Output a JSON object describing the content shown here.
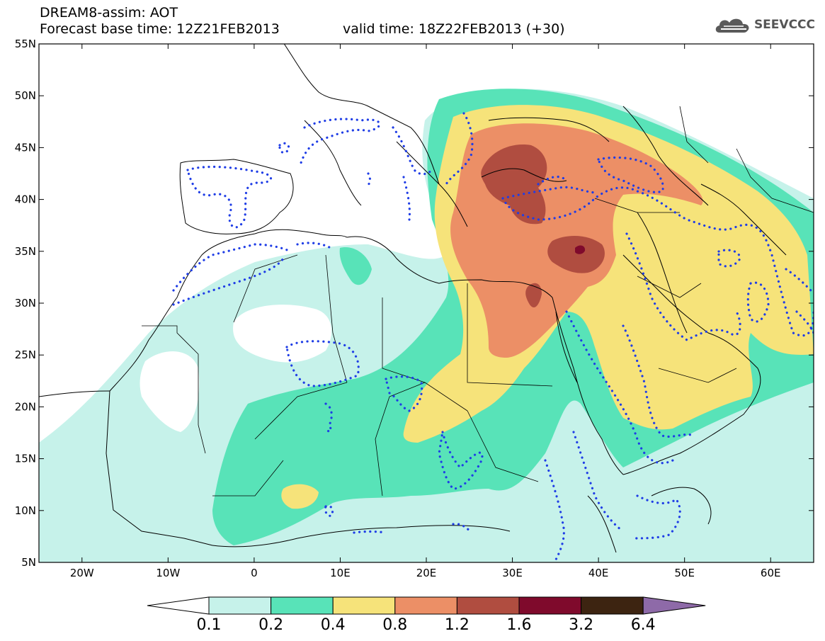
{
  "header": {
    "title": "DREAM8-assim: AOT",
    "base_time": "Forecast base time: 12Z21FEB2013",
    "valid_time": "valid time: 18Z22FEB2013 (+30)"
  },
  "logo": {
    "text": "SEEVCCC",
    "icon": "cloud-logo-icon"
  },
  "map": {
    "region": {
      "lon_min": -25,
      "lon_max": 65,
      "lat_min": 5,
      "lat_max": 55
    },
    "lon_ticks": [
      {
        "value": -20,
        "label": "20W"
      },
      {
        "value": -10,
        "label": "10W"
      },
      {
        "value": 0,
        "label": "0"
      },
      {
        "value": 10,
        "label": "10E"
      },
      {
        "value": 20,
        "label": "20E"
      },
      {
        "value": 30,
        "label": "30E"
      },
      {
        "value": 40,
        "label": "40E"
      },
      {
        "value": 50,
        "label": "50E"
      },
      {
        "value": 60,
        "label": "60E"
      }
    ],
    "lat_ticks": [
      {
        "value": 5,
        "label": "5N"
      },
      {
        "value": 10,
        "label": "10N"
      },
      {
        "value": 15,
        "label": "15N"
      },
      {
        "value": 20,
        "label": "20N"
      },
      {
        "value": 25,
        "label": "25N"
      },
      {
        "value": 30,
        "label": "30N"
      },
      {
        "value": 35,
        "label": "35N"
      },
      {
        "value": 40,
        "label": "40N"
      },
      {
        "value": 45,
        "label": "45N"
      },
      {
        "value": 50,
        "label": "50N"
      },
      {
        "value": 55,
        "label": "55N"
      }
    ]
  },
  "colorbar": {
    "labels": [
      "0.1",
      "0.2",
      "0.4",
      "0.8",
      "1.2",
      "1.6",
      "3.2",
      "6.4"
    ],
    "colors": [
      "#c6f2ea",
      "#58e3b8",
      "#f6e37a",
      "#ec8f66",
      "#b04d40",
      "#7f0a2c",
      "#3d2411"
    ],
    "under_color": "#ffffff",
    "over_color": "#8e6aa8"
  }
}
